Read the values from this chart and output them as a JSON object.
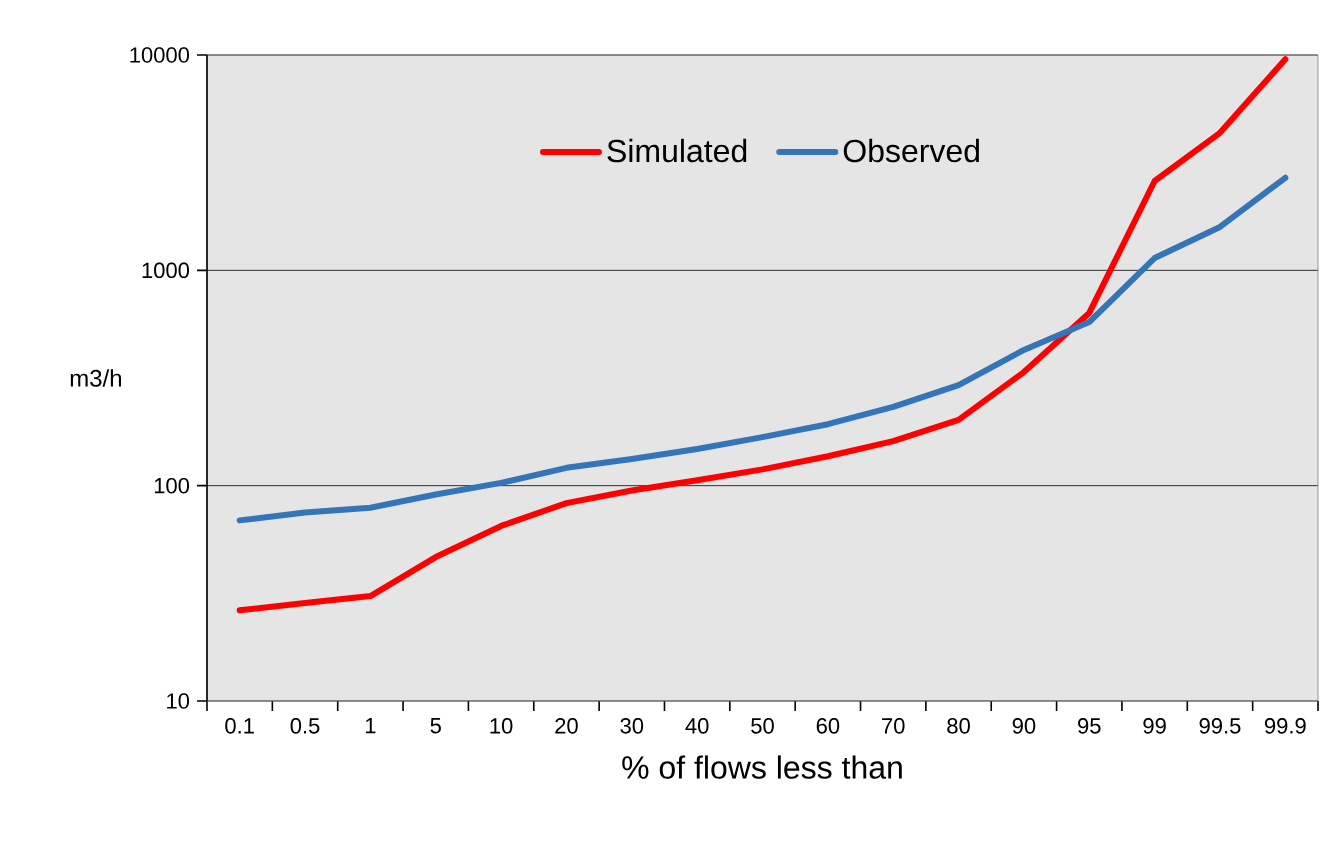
{
  "chart_data": {
    "type": "line",
    "xlabel": "% of flows less than",
    "ylabel": "m3/h",
    "categories": [
      "0.1",
      "0.5",
      "1",
      "5",
      "10",
      "20",
      "30",
      "40",
      "50",
      "60",
      "70",
      "80",
      "90",
      "95",
      "99",
      "99.5",
      "99.9"
    ],
    "series": [
      {
        "name": "Simulated",
        "color": "#ff0000",
        "values": [
          26.4,
          28.5,
          30.7,
          46.6,
          65,
          83,
          95,
          106,
          119,
          137,
          161,
          202,
          337,
          634,
          2600,
          4350,
          9560
        ]
      },
      {
        "name": "Observed",
        "color": "#3375b8",
        "values": [
          69,
          75,
          79,
          91,
          103,
          121,
          133,
          148,
          168,
          193,
          232,
          293,
          427,
          575,
          1140,
          1590,
          2690
        ]
      }
    ],
    "log": "y",
    "ylim": [
      10,
      10000
    ],
    "yticks": [
      10,
      100,
      1000,
      10000
    ],
    "grid": "y",
    "legend": "top",
    "marker": "none",
    "line_style": "solid"
  }
}
